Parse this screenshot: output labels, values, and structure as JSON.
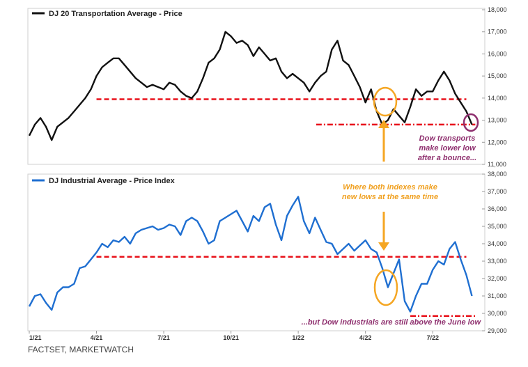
{
  "source": "FACTSET, MARKETWATCH",
  "chart_data": [
    {
      "type": "line",
      "legend": "DJ 20 Transportation Average - Price",
      "ylim": [
        11000,
        18000
      ],
      "yticks": [
        "11,000",
        "12,000",
        "13,000",
        "14,000",
        "15,000",
        "16,000",
        "17,000",
        "18,000"
      ],
      "ytick_values": [
        11000,
        12000,
        13000,
        14000,
        15000,
        16000,
        17000,
        18000
      ],
      "xlim": [
        0,
        20.2
      ],
      "series": [
        {
          "color": "#111111",
          "x": [
            0,
            0.25,
            0.5,
            0.75,
            1.0,
            1.25,
            1.5,
            1.75,
            2.0,
            2.25,
            2.5,
            2.75,
            3.0,
            3.25,
            3.5,
            3.75,
            4.0,
            4.25,
            4.5,
            4.75,
            5.0,
            5.25,
            5.5,
            5.75,
            6.0,
            6.25,
            6.5,
            6.75,
            7.0,
            7.25,
            7.5,
            7.75,
            8.0,
            8.25,
            8.5,
            8.75,
            9.0,
            9.25,
            9.5,
            9.75,
            10.0,
            10.25,
            10.5,
            10.75,
            11.0,
            11.25,
            11.5,
            11.75,
            12.0,
            12.25,
            12.5,
            12.75,
            13.0,
            13.25,
            13.5,
            13.75,
            14.0,
            14.25,
            14.5,
            14.75,
            15.0,
            15.25,
            15.5,
            15.75,
            16.0,
            16.25,
            16.5,
            16.75,
            17.0,
            17.25,
            17.5,
            17.75,
            18.0,
            18.25,
            18.5,
            18.75,
            19.0,
            19.25,
            19.5,
            19.75
          ],
          "values": [
            12300,
            12800,
            13100,
            12700,
            12100,
            12700,
            12900,
            13100,
            13400,
            13700,
            14000,
            14400,
            15000,
            15400,
            15600,
            15800,
            15800,
            15500,
            15200,
            14900,
            14700,
            14500,
            14600,
            14500,
            14400,
            14700,
            14600,
            14300,
            14100,
            14000,
            14300,
            14900,
            15600,
            15800,
            16200,
            17000,
            16800,
            16500,
            16600,
            16400,
            15900,
            16300,
            16000,
            15700,
            15800,
            15200,
            14900,
            15100,
            14900,
            14700,
            14300,
            14700,
            15000,
            15200,
            16200,
            16600,
            15700,
            15500,
            15000,
            14500,
            13800,
            14400,
            13400,
            12800,
            13000,
            13500,
            13200,
            12900,
            13600,
            14400,
            14100,
            14300,
            14300,
            14800,
            15200,
            14800,
            14200,
            13800,
            13400,
            12800
          ]
        }
      ],
      "reference_lines": [
        {
          "x_from": 3.0,
          "x_to": 19.5,
          "y": 13950,
          "color": "#e8111a"
        },
        {
          "x_from": 12.8,
          "x_to": 19.9,
          "y": 12800,
          "color": "#e8111a"
        }
      ],
      "annotations": {
        "purple_text": [
          "Dow transports",
          "make lower low",
          "after a bounce..."
        ]
      }
    },
    {
      "type": "line",
      "legend": "DJ Industrial Average - Price Index",
      "ylim": [
        29000,
        38000
      ],
      "yticks": [
        "29,000",
        "30,000",
        "31,000",
        "32,000",
        "33,000",
        "34,000",
        "35,000",
        "36,000",
        "37,000",
        "38,000"
      ],
      "ytick_values": [
        29000,
        30000,
        31000,
        32000,
        33000,
        34000,
        35000,
        36000,
        37000,
        38000
      ],
      "xlim": [
        0,
        20.2
      ],
      "x_ticks": [
        "1/21",
        "4/21",
        "7/21",
        "10/21",
        "1/22",
        "4/22",
        "7/22"
      ],
      "x_tick_positions": [
        0,
        3,
        6,
        9,
        12,
        15,
        18
      ],
      "series": [
        {
          "color": "#1f6fd1",
          "x": [
            0,
            0.25,
            0.5,
            0.75,
            1.0,
            1.25,
            1.5,
            1.75,
            2.0,
            2.25,
            2.5,
            2.75,
            3.0,
            3.25,
            3.5,
            3.75,
            4.0,
            4.25,
            4.5,
            4.75,
            5.0,
            5.25,
            5.5,
            5.75,
            6.0,
            6.25,
            6.5,
            6.75,
            7.0,
            7.25,
            7.5,
            7.75,
            8.0,
            8.25,
            8.5,
            8.75,
            9.0,
            9.25,
            9.5,
            9.75,
            10.0,
            10.25,
            10.5,
            10.75,
            11.0,
            11.25,
            11.5,
            11.75,
            12.0,
            12.25,
            12.5,
            12.75,
            13.0,
            13.25,
            13.5,
            13.75,
            14.0,
            14.25,
            14.5,
            14.75,
            15.0,
            15.25,
            15.5,
            15.75,
            16.0,
            16.25,
            16.5,
            16.75,
            17.0,
            17.25,
            17.5,
            17.75,
            18.0,
            18.25,
            18.5,
            18.75,
            19.0,
            19.25,
            19.5,
            19.75
          ],
          "values": [
            30400,
            31000,
            31100,
            30600,
            30200,
            31200,
            31500,
            31500,
            31700,
            32600,
            32700,
            33100,
            33500,
            34000,
            33800,
            34200,
            34100,
            34400,
            34000,
            34600,
            34800,
            34900,
            35000,
            34800,
            34900,
            35100,
            35000,
            34500,
            35300,
            35500,
            35300,
            34700,
            34000,
            34200,
            35300,
            35500,
            35700,
            35900,
            35300,
            34700,
            35600,
            35300,
            36100,
            36300,
            35100,
            34200,
            35600,
            36200,
            36700,
            35300,
            34600,
            35500,
            34800,
            34100,
            34000,
            33400,
            33700,
            34000,
            33600,
            33900,
            34200,
            33700,
            33500,
            32600,
            31500,
            32300,
            33100,
            30700,
            30100,
            31000,
            31700,
            31700,
            32500,
            33000,
            32800,
            33700,
            34100,
            33100,
            32200,
            31000
          ]
        }
      ],
      "reference_lines": [
        {
          "x_from": 3.0,
          "x_to": 19.5,
          "y": 33250,
          "color": "#e8111a"
        },
        {
          "x_from": 17.0,
          "x_to": 19.9,
          "y": 29850,
          "color": "#e8111a"
        }
      ],
      "annotations": {
        "orange_text": [
          "Where both indexes make",
          "new lows at the same time"
        ],
        "purple_text": [
          "...but Dow industrials are still above the June low"
        ]
      }
    }
  ]
}
